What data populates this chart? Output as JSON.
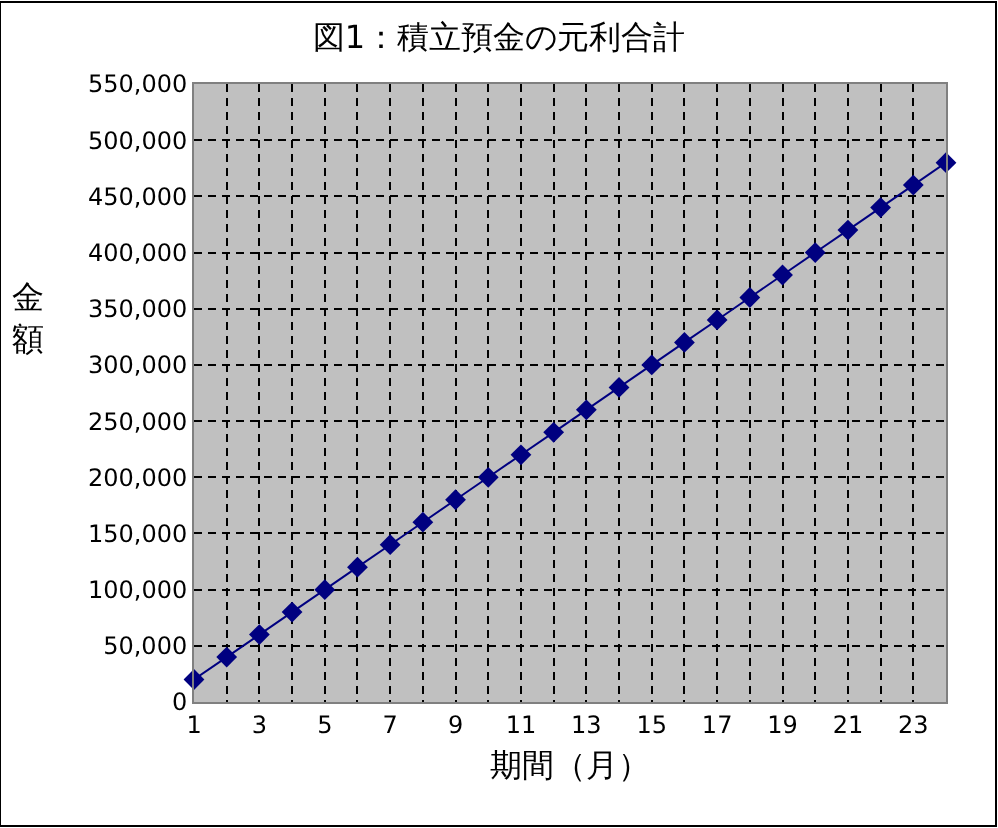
{
  "chart_data": {
    "type": "line",
    "title": "図1：積立預金の元利合計",
    "xlabel": "期間（月）",
    "ylabel": "金額",
    "x": [
      1,
      2,
      3,
      4,
      5,
      6,
      7,
      8,
      9,
      10,
      11,
      12,
      13,
      14,
      15,
      16,
      17,
      18,
      19,
      20,
      21,
      22,
      23,
      24
    ],
    "series": [
      {
        "color": "#000080",
        "values": [
          20000,
          40000,
          60000,
          80000,
          100000,
          120000,
          140000,
          160000,
          180000,
          200000,
          220000,
          240000,
          260000,
          280000,
          300000,
          320000,
          340000,
          360000,
          380000,
          400000,
          420000,
          440000,
          460000,
          480000
        ]
      }
    ],
    "xlim": [
      1,
      24
    ],
    "xticks": [
      1,
      {
        "value": 2,
        "label": null
      },
      3,
      {
        "value": 4,
        "label": null
      },
      5,
      {
        "value": 6,
        "label": null
      },
      7,
      {
        "value": 8,
        "label": null
      },
      9,
      {
        "value": 10,
        "label": null
      },
      11,
      {
        "value": 12,
        "label": null
      },
      13,
      {
        "value": 14,
        "label": null
      },
      15,
      {
        "value": 16,
        "label": null
      },
      17,
      {
        "value": 18,
        "label": null
      },
      19,
      {
        "value": 20,
        "label": null
      },
      21,
      {
        "value": 22,
        "label": null
      },
      23,
      {
        "value": 24,
        "label": null
      }
    ],
    "ylim": [
      0,
      550000
    ],
    "yticks": [
      {
        "value": 0,
        "label": "0"
      },
      {
        "value": 50000,
        "label": "50,000"
      },
      {
        "value": 100000,
        "label": "100,000"
      },
      {
        "value": 150000,
        "label": "150,000"
      },
      {
        "value": 200000,
        "label": "200,000"
      },
      {
        "value": 250000,
        "label": "250,000"
      },
      {
        "value": 300000,
        "label": "300,000"
      },
      {
        "value": 350000,
        "label": "350,000"
      },
      {
        "value": 400000,
        "label": "400,000"
      },
      {
        "value": 450000,
        "label": "450,000"
      },
      {
        "value": 500000,
        "label": "500,000"
      },
      {
        "value": 550000,
        "label": "550,000"
      }
    ],
    "grid": true,
    "marker": "diamond",
    "line_style": "solid"
  }
}
